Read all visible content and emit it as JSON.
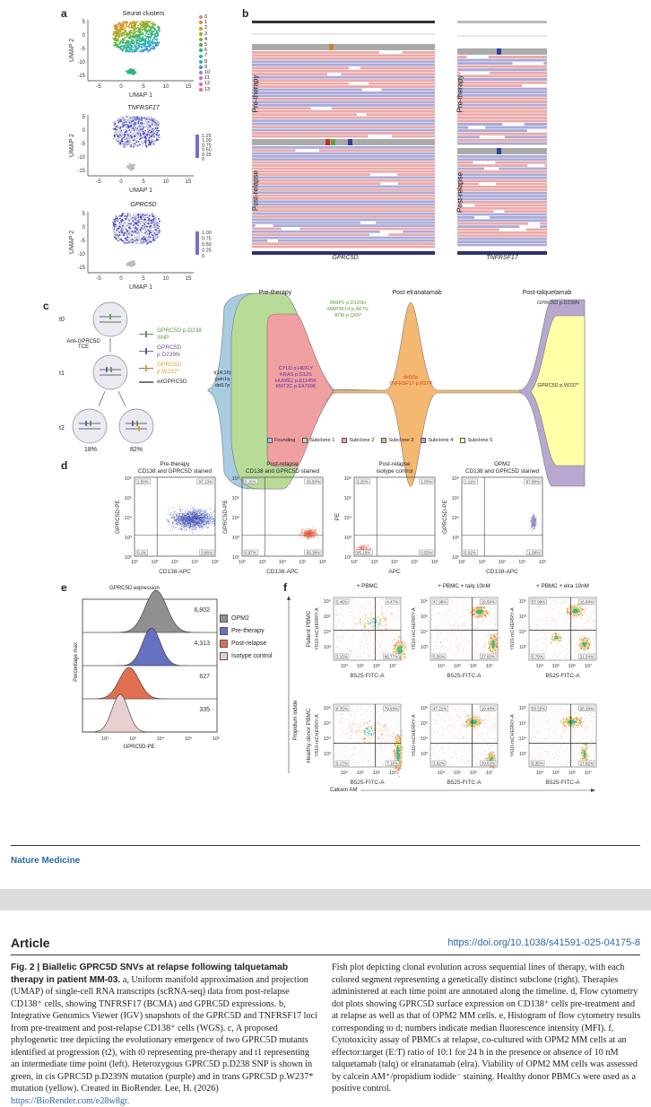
{
  "panels": {
    "a": "a",
    "b": "b",
    "c": "c",
    "d": "d",
    "e": "e",
    "f": "f"
  },
  "a": {
    "title": "Seurat clusters",
    "tnf_title": "TNFRSF17",
    "gprc_title": "GPRC5D",
    "xlabel": "UMAP 1",
    "ylabel": "UMAP 2",
    "xticks": [
      "-5",
      "0",
      "5",
      "10",
      "15"
    ],
    "yticks": [
      "5",
      "0",
      "-5",
      "-10",
      "-15"
    ],
    "clusters": [
      "0",
      "1",
      "2",
      "3",
      "4",
      "5",
      "6",
      "7",
      "8",
      "9",
      "10",
      "11",
      "12",
      "13"
    ],
    "cluster_colors": [
      "#f08070",
      "#d9903a",
      "#c7a020",
      "#a0a820",
      "#7ab030",
      "#40b050",
      "#30b080",
      "#30b0a0",
      "#30a8c8",
      "#3090d8",
      "#9080e0",
      "#c070d8",
      "#e060c0",
      "#f06890"
    ],
    "tnf_scale": [
      "1.25",
      "1.00",
      "0.75",
      "0.50",
      "0.25",
      "0"
    ],
    "gprc_scale": [
      "1.00",
      "0.75",
      "0.50",
      "0.25",
      "0"
    ]
  },
  "b": {
    "pre": "Pre-therapy",
    "post": "Post-relapse",
    "gene_left": "GPRC5D",
    "gene_right": "TNFRSF17"
  },
  "c": {
    "t0": "t0",
    "t1": "t1",
    "t2": "t2",
    "tce": "Anti-GPRC5D TCE",
    "legend": [
      {
        "label": "GPRC5D p.D238 SNP",
        "color": "#5a9a4a"
      },
      {
        "label": "GPRC5D p.D239N",
        "color": "#7050a0"
      },
      {
        "label": "GPRC5D p.W237*",
        "color": "#e0a030"
      },
      {
        "label": "wtGPRC5D",
        "color": "#777777"
      }
    ],
    "pct": [
      "18%",
      "82%"
    ],
    "timepoints": [
      "Pre-therapy",
      "Post-elranatamab",
      "Post-talquetamab"
    ],
    "founding_text": "t(14;16)\ngain1q\ndel17p",
    "sub1_text": "BRIP1 p.D120H\nMAP3K14 p.A67G\nATM p.Q69*",
    "sub2_text": "CYLD p.H691Y\nKRAS p.G12S\nHUWE1 p.E1145K\nKMT2C p.E4799K",
    "sub3_text": "del16p\nTNFRSF17 p.R27P",
    "sub4_text": "GPRC5D p.D239N",
    "sub5_text": "GPRC5D p.W237*",
    "clones": [
      {
        "label": "Founding",
        "color": "#a8cce0"
      },
      {
        "label": "Subclone 1",
        "color": "#b8dc98"
      },
      {
        "label": "Subclone 2",
        "color": "#f0a0a0"
      },
      {
        "label": "Subclone 3",
        "color": "#f4b870"
      },
      {
        "label": "Subclone 4",
        "color": "#b8a8d0"
      },
      {
        "label": "Subclone 5",
        "color": "#ffffa8"
      }
    ]
  },
  "d": {
    "yticks": [
      "10⁶",
      "10⁵",
      "10⁴",
      "10³",
      "10²"
    ],
    "xticks": [
      "10²",
      "10³",
      "10⁴",
      "10⁵",
      "10⁶"
    ],
    "plots": [
      {
        "title": "Pre-therapy\nCD138 and GPRC5D stained",
        "xlabel": "CD138-APC",
        "ylabel": "GPRC5D-PE",
        "q": [
          "1.50%",
          "97.13%",
          "0.1%",
          "0.86%"
        ],
        "color": "#4050b0"
      },
      {
        "title": "Post-relapse\nCD138 and GPRC5D stained",
        "xlabel": "CD138-APC",
        "ylabel": "GPRC5D-PE",
        "q": [
          "0.15%",
          "29.50%",
          "0.97%",
          "69.38%"
        ],
        "color": "#e05030"
      },
      {
        "title": "Post-relapse\nisotype control",
        "xlabel": "APC",
        "ylabel": "PE",
        "q": [
          "3.25%",
          "1.05%",
          "95.16%",
          "0.55%"
        ],
        "color": "#e08070"
      },
      {
        "title": "OPM2\nCD138 and GPRC5D stained",
        "xlabel": "CD138-APC",
        "ylabel": "GPRC5D-PE",
        "q": [
          "1.11%",
          "97.80%",
          "0.02%",
          "1.08%"
        ],
        "color": "#8888c0"
      }
    ]
  },
  "e": {
    "title": "GPRC5D expression",
    "xlabel": "GPRC5D-PE",
    "ylabel": "Percentage max",
    "xticks": [
      "10²",
      "10³",
      "10⁴",
      "10⁵",
      "10⁶"
    ],
    "series": [
      {
        "name": "OPM2",
        "mfi": "6,802",
        "color": "#909090"
      },
      {
        "name": "Pre-therapy",
        "mfi": "4,313",
        "color": "#6870c0"
      },
      {
        "name": "Post-relapse",
        "mfi": "627",
        "color": "#e07050"
      },
      {
        "name": "Isotype control",
        "mfi": "335",
        "color": "#e8d0d0"
      }
    ]
  },
  "f": {
    "cols": [
      "+ PBMC",
      "+ PBMC + talq 10nM",
      "+ PBMC + elra 10nM"
    ],
    "rows": [
      "Patient PBMC",
      "Healthy donor PBMC"
    ],
    "xlabel": "B525-FITC-A",
    "ylabel": "Y610-mCHERRY-A",
    "pi": "Propidium iodide",
    "calcein": "Calcein AM",
    "xticks": [
      "10⁴",
      "10⁵",
      "10⁶",
      "10⁷"
    ],
    "yticks": [
      "10⁶",
      "10⁵",
      "10⁴",
      "10³"
    ],
    "q": [
      [
        "5.49%",
        "4.47%",
        "3.15%",
        "86.77%"
      ],
      [
        "47.99%",
        "19.56%",
        "5.56%",
        "27.93%"
      ],
      [
        "57.98%",
        "16.69%",
        "5.79%",
        "21.54%"
      ],
      [
        "8.35%",
        "79.93%",
        "5.17%",
        "7.16%"
      ],
      [
        "47.21%",
        "19.48%",
        "3.92%",
        "29.53%"
      ],
      [
        "50.55%",
        "26.28%",
        "5.35%",
        "17.82%"
      ]
    ]
  },
  "footer": {
    "journal": "Nature Medicine",
    "article": "Article",
    "doi": "https://doi.org/10.1038/s41591-025-04175-8"
  },
  "caption": {
    "title": "Fig. 2 | Biallelic GPRC5D SNVs at relapse following talquetamab therapy in patient MM-03.",
    "left": "a, Uniform manifold approximation and projection (UMAP) of single-cell RNA transcripts (scRNA-seq) data from post-relapse CD138⁺ cells, showing TNFRSF17 (BCMA) and GPRC5D expressions. b, Integrative Genomics Viewer (IGV) snapshots of the GPRC5D and TNFRSF17 loci from pre-treatment and post-relapse CD138⁺ cells (WGS). c, A proposed phylogenetic tree depicting the evolutionary emergence of two GPRC5D mutants identified at progression (t2), with t0 representing pre-therapy and t1 representing an intermediate time point (left). Heterozygous GPRC5D p.D238 SNP is shown in green, in cis GPRC5D p.D239N mutation (purple) and in trans GPRC5D p.W237* mutation (yellow). Created in BioRender. Lee, H. (2026)",
    "link": "https://BioRender.com/e28w8gr.",
    "right": "Fish plot depicting clonal evolution across sequential lines of therapy, with each colored segment representing a genetically distinct subclone (right). Therapies administered at each time point are annotated along the timeline. d, Flow cytometry dot plots showing GPRC5D surface expression on CD138⁺ cells pre-treatment and at relapse as well as that of OPM2 MM cells. e, Histogram of flow cytometry results corresponding to d; numbers indicate median fluorescence intensity (MFI). f, Cytotoxicity assay of PBMCs at relapse, co-cultured with OPM2 MM cells at an effector:target (E:T) ratio of 10:1 for 24 h in the presence or absence of 10 nM talquetamab (talq) or elranatamab (elra). Viability of OPM2 MM cells was assessed by calcein AM⁺/propidium iodide⁻ staining. Healthy donor PBMCs were used as a positive control."
  },
  "colors": {
    "link": "#2a6aa8",
    "band": "#dcdcdc"
  }
}
